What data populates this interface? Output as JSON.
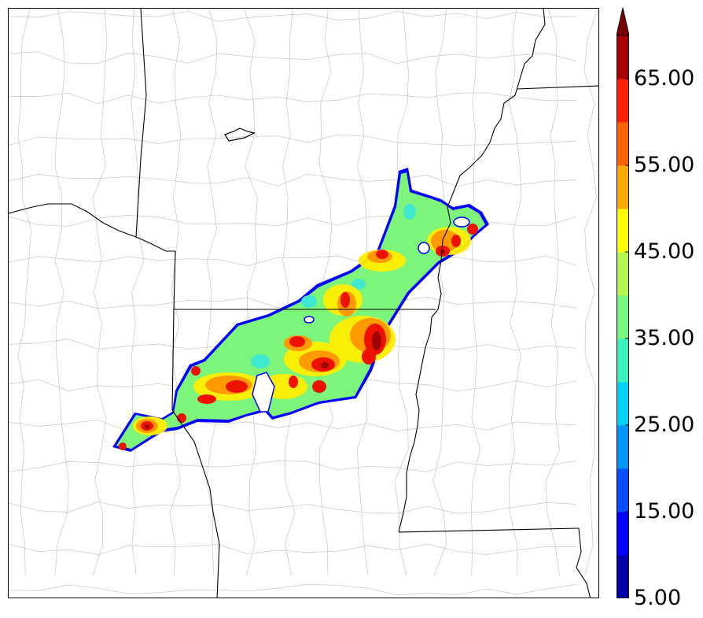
{
  "colorbar": {
    "tick_labels": [
      "5.00",
      "15.00",
      "25.00",
      "35.00",
      "45.00",
      "55.00",
      "65.00"
    ],
    "min": 5,
    "max": 70,
    "step": 5,
    "extend": "max",
    "colors": [
      "#0000aa",
      "#0000ff",
      "#0050ff",
      "#0096ff",
      "#00d2ff",
      "#38f0c0",
      "#78f878",
      "#b4f850",
      "#ffff00",
      "#ffaa00",
      "#ff6400",
      "#ff2000",
      "#aa0000"
    ],
    "extend_color": "#7a0000"
  },
  "map": {
    "boundary_color": "#000000",
    "county_line_color": "#bdbdbd",
    "field_outline_color": "#0000ff"
  }
}
